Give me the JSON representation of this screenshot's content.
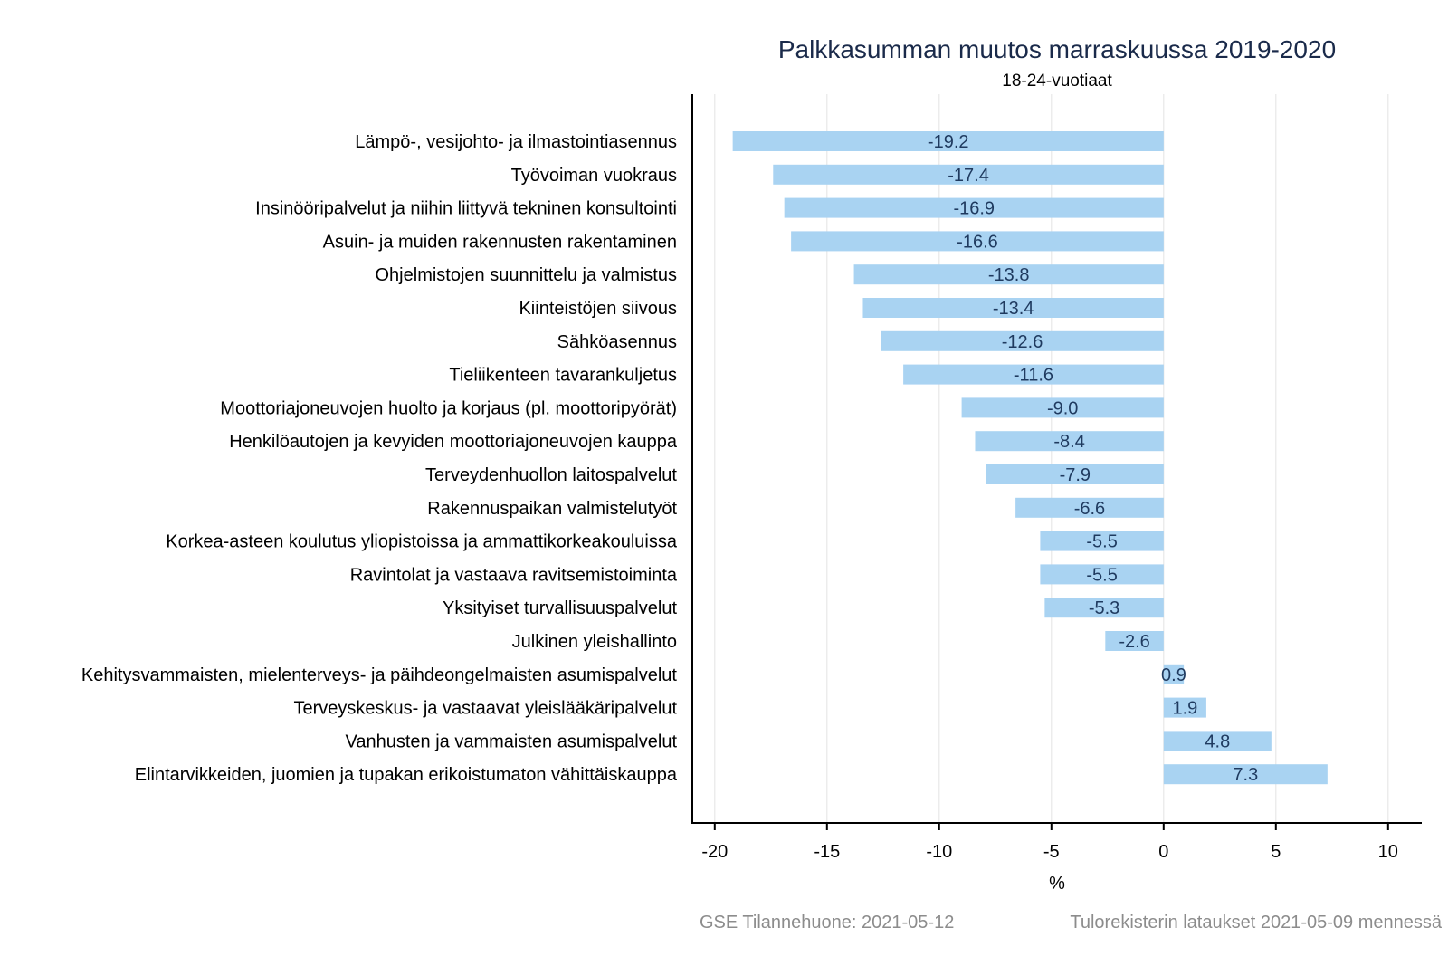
{
  "chart_data": {
    "type": "bar",
    "orientation": "horizontal",
    "title": "Palkkasumman muutos marraskuussa 2019-2020",
    "subtitle": "18-24-vuotiaat",
    "xlabel": "%",
    "ylabel": "",
    "xlim": [
      -21,
      11.5
    ],
    "xticks": [
      -20,
      -15,
      -10,
      -5,
      0,
      5,
      10
    ],
    "xtick_labels": [
      "-20",
      "-15",
      "-10",
      "-5",
      "0",
      "5",
      "10"
    ],
    "grid": true,
    "categories": [
      "Lämpö-, vesijohto- ja ilmastointiasennus",
      "Työvoiman vuokraus",
      "Insinööripalvelut ja niihin liittyvä tekninen konsultointi",
      "Asuin- ja muiden rakennusten rakentaminen",
      "Ohjelmistojen suunnittelu ja valmistus",
      "Kiinteistöjen siivous",
      "Sähköasennus",
      "Tieliikenteen tavarankuljetus",
      "Moottoriajoneuvojen huolto ja korjaus (pl. moottoripyörät)",
      "Henkilöautojen ja kevyiden moottoriajoneuvojen kauppa",
      "Terveydenhuollon laitospalvelut",
      "Rakennuspaikan valmistelutyöt",
      "Korkea-asteen koulutus yliopistoissa ja ammattikorkeakouluissa",
      "Ravintolat ja vastaava ravitsemistoiminta",
      "Yksityiset turvallisuuspalvelut",
      "Julkinen yleishallinto",
      "Kehitysvammaisten, mielenterveys- ja päihdeongelmaisten asumispalvelut",
      "Terveyskeskus- ja vastaavat yleislääkäripalvelut",
      "Vanhusten ja vammaisten asumispalvelut",
      "Elintarvikkeiden, juomien ja tupakan erikoistumaton vähittäiskauppa"
    ],
    "values": [
      -19.2,
      -17.4,
      -16.9,
      -16.6,
      -13.8,
      -13.4,
      -12.6,
      -11.6,
      -9.0,
      -8.4,
      -7.9,
      -6.6,
      -5.5,
      -5.5,
      -5.3,
      -2.6,
      0.9,
      1.9,
      4.8,
      7.3
    ],
    "value_labels": [
      "-19.2",
      "-17.4",
      "-16.9",
      "-16.6",
      "-13.8",
      "-13.4",
      "-12.6",
      "-11.6",
      "-9.0",
      "-8.4",
      "-7.9",
      "-6.6",
      "-5.5",
      "-5.5",
      "-5.3",
      "-2.6",
      "0.9",
      "1.9",
      "4.8",
      "7.3"
    ],
    "bar_color": "#a9d3f2",
    "label_color": "#1f3a5f"
  },
  "footer": {
    "source": "GSE Tilannehuone: 2021-05-12",
    "note": "Tulorekisterin lataukset 2021-05-09 mennessä"
  }
}
